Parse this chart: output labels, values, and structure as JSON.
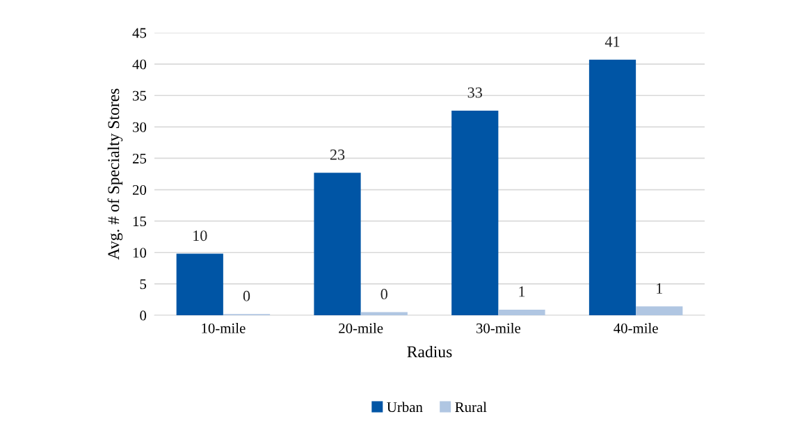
{
  "chart_data": {
    "type": "bar",
    "xlabel": "Radius",
    "ylabel": "Avg. # of Specialty Stores",
    "categories": [
      "10-mile",
      "20-mile",
      "30-mile",
      "40-mile"
    ],
    "series": [
      {
        "name": "Urban",
        "color": "#0055a5",
        "values": [
          9.8,
          22.7,
          32.6,
          40.7
        ],
        "value_labels": [
          "10",
          "23",
          "33",
          "41"
        ]
      },
      {
        "name": "Rural",
        "color": "#b0c6e2",
        "values": [
          0.2,
          0.5,
          0.9,
          1.4
        ],
        "value_labels": [
          "0",
          "0",
          "1",
          "1"
        ]
      }
    ],
    "ylim": [
      0,
      45
    ],
    "yticks": [
      0,
      5,
      10,
      15,
      20,
      25,
      30,
      35,
      40,
      45
    ],
    "grid": "y",
    "legend": "bottom"
  }
}
